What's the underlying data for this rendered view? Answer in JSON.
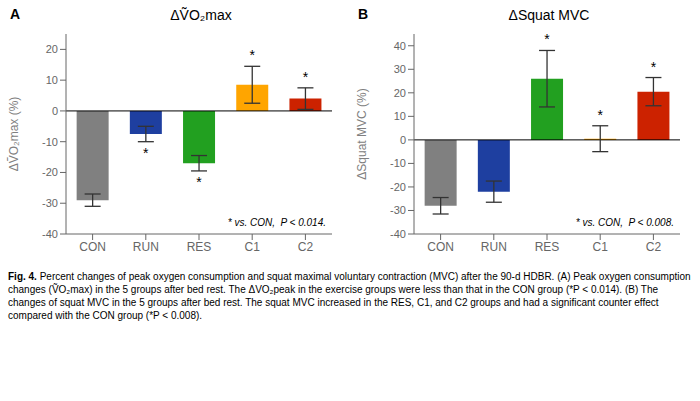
{
  "chart_data": [
    {
      "type": "bar",
      "panel_label": "A",
      "title": "ΔṼO₂max",
      "ylabel": "ΔṼO₂max (%)",
      "categories": [
        "CON",
        "RUN",
        "RES",
        "C1",
        "C2"
      ],
      "values": [
        -29.0,
        -7.5,
        -17.0,
        8.5,
        4.0
      ],
      "errors": [
        2.0,
        2.5,
        2.5,
        6.0,
        3.5
      ],
      "colors": [
        "#808080",
        "#1e3fa0",
        "#22a020",
        "#ffa500",
        "#cc2200"
      ],
      "significance": [
        false,
        true,
        true,
        true,
        true
      ],
      "significance_label": "*",
      "annotations": [
        "* vs. CON,  P < 0.014."
      ],
      "ylim": [
        -40,
        25
      ],
      "yticks": [
        -40,
        -30,
        -20,
        -10,
        0,
        10,
        20
      ],
      "grid": false
    },
    {
      "type": "bar",
      "panel_label": "B",
      "title": "ΔSquat MVC",
      "ylabel": "ΔSquat MVC (%)",
      "categories": [
        "CON",
        "RUN",
        "RES",
        "C1",
        "C2"
      ],
      "values": [
        -28.0,
        -22.0,
        26.0,
        0.5,
        20.5
      ],
      "errors": [
        3.5,
        4.5,
        12.0,
        5.5,
        6.0
      ],
      "colors": [
        "#808080",
        "#1e3fa0",
        "#22a020",
        "#ffa500",
        "#cc2200"
      ],
      "significance": [
        false,
        false,
        true,
        true,
        true
      ],
      "significance_label": "*",
      "annotations": [
        "* vs. CON,  P < 0.008."
      ],
      "ylim": [
        -40,
        45
      ],
      "yticks": [
        -40,
        -30,
        -20,
        -10,
        0,
        10,
        20,
        30,
        40
      ],
      "grid": false
    }
  ],
  "caption": [
    "Fig. 4.",
    "Percent changes of peak oxygen consumption and squat maximal voluntary contraction (MVC) after the 90-d HDBR. (A) Peak oxygen consumption changes (ṼO₂max) in the 5 groups after bed rest. The ΔVO₂peak in the exercise groups were less than that in the CON group (*P < 0.014). (B) The changes of squat MVC in the 5 groups after bed rest. The squat MVC increased in the RES, C1, and C2 groups and had a significant counter effect compared with the CON group (*P < 0.008)."
  ]
}
